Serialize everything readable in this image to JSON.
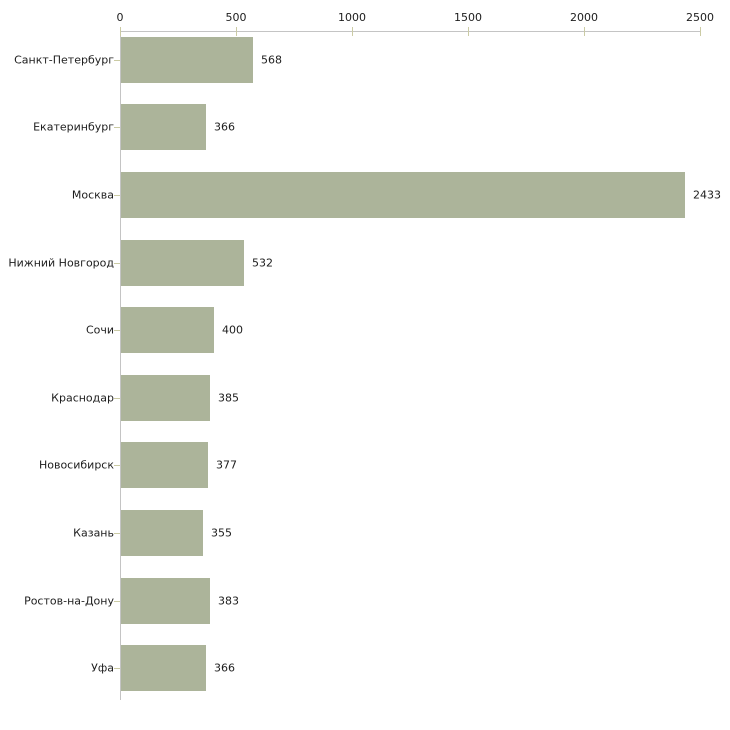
{
  "chart_data": {
    "type": "bar",
    "orientation": "horizontal",
    "title": "",
    "xlabel": "",
    "ylabel": "",
    "axis_position": "top",
    "grid": false,
    "legend": null,
    "xlim": [
      0,
      2500
    ],
    "x_ticks": [
      0,
      500,
      1000,
      1500,
      2000,
      2500
    ],
    "categories": [
      "Санкт-Петербург",
      "Екатеринбург",
      "Москва",
      "Нижний Новгород",
      "Сочи",
      "Краснодар",
      "Новосибирск",
      "Казань",
      "Ростов-на-Дону",
      "Уфа"
    ],
    "values": [
      568,
      366,
      2433,
      532,
      400,
      385,
      377,
      355,
      383,
      366
    ],
    "value_labels": [
      "568",
      "366",
      "2433",
      "532",
      "400",
      "385",
      "377",
      "355",
      "383",
      "366"
    ],
    "colors": {
      "bar": "#acb49a",
      "axis_line": "#c4c4c4",
      "tick_mark": "#cbcba4",
      "text": "#1d1d1d",
      "background": "#ffffff"
    }
  }
}
